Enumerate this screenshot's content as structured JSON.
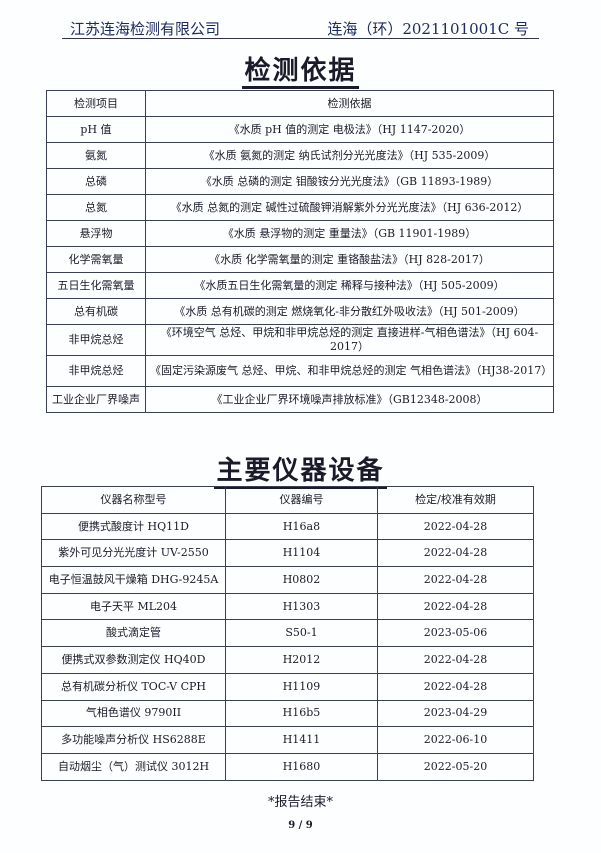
{
  "header": {
    "company": "江苏连海检测有限公司",
    "report_no": "连海（环）2021101001C 号"
  },
  "basis": {
    "title": "检测依据",
    "columns": [
      "检测项目",
      "检测依据"
    ],
    "rows": [
      [
        "pH 值",
        "《水质 pH 值的测定  电极法》（HJ 1147-2020）"
      ],
      [
        "氨氮",
        "《水质  氨氮的测定  纳氏试剂分光光度法》（HJ 535-2009）"
      ],
      [
        "总磷",
        "《水质  总磷的测定  钼酸铵分光光度法》（GB 11893-1989）"
      ],
      [
        "总氮",
        "《水质  总氮的测定  碱性过硫酸钾消解紫外分光光度法》（HJ 636-2012）"
      ],
      [
        "悬浮物",
        "《水质  悬浮物的测定  重量法》（GB 11901-1989）"
      ],
      [
        "化学需氧量",
        "《水质  化学需氧量的测定  重铬酸盐法》（HJ 828-2017）"
      ],
      [
        "五日生化需氧量",
        "《水质五日生化需氧量的测定  稀释与接种法》（HJ 505-2009）"
      ],
      [
        "总有机碳",
        "《水质  总有机碳的测定  燃烧氧化-非分散红外吸收法》（HJ 501-2009）"
      ],
      [
        "非甲烷总烃",
        "《环境空气  总烃、甲烷和非甲烷总烃的测定  直接进样-气相色谱法》（HJ 604-2017）"
      ],
      [
        "非甲烷总烃",
        "《固定污染源废气  总烃、甲烷、和非甲烷总烃的测定  气相色谱法》（HJ38-2017）"
      ],
      [
        "工业企业厂界噪声",
        "《工业企业厂界环境噪声排放标准》（GB12348-2008）"
      ]
    ]
  },
  "equipment": {
    "title": "主要仪器设备",
    "columns": [
      "仪器名称型号",
      "仪器编号",
      "检定/校准有效期"
    ],
    "rows": [
      [
        "便携式酸度计 HQ11D",
        "H16a8",
        "2022-04-28"
      ],
      [
        "紫外可见分光光度计 UV-2550",
        "H1104",
        "2022-04-28"
      ],
      [
        "电子恒温鼓风干燥箱 DHG-9245A",
        "H0802",
        "2022-04-28"
      ],
      [
        "电子天平 ML204",
        "H1303",
        "2022-04-28"
      ],
      [
        "酸式滴定管",
        "S50-1",
        "2023-05-06"
      ],
      [
        "便携式双参数测定仪 HQ40D",
        "H2012",
        "2022-04-28"
      ],
      [
        "总有机碳分析仪 TOC-V CPH",
        "H1109",
        "2022-04-28"
      ],
      [
        "气相色谱仪 9790II",
        "H16b5",
        "2023-04-29"
      ],
      [
        "多功能噪声分析仪 HS6288E",
        "H1411",
        "2022-06-10"
      ],
      [
        "自动烟尘（气）测试仪 3012H",
        "H1680",
        "2022-05-20"
      ]
    ]
  },
  "footer": {
    "end_text": "*报告结束*",
    "page": "9 / 9"
  }
}
